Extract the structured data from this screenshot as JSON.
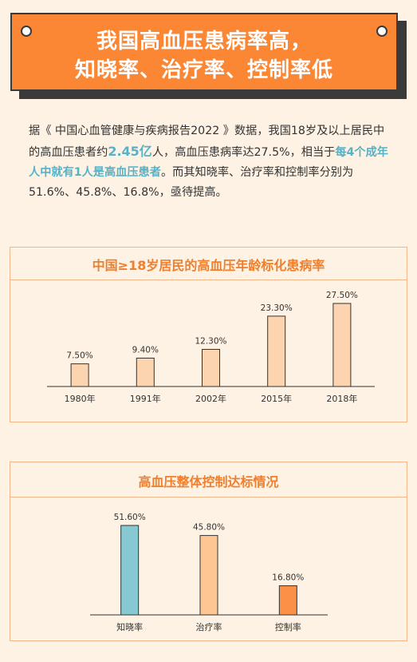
{
  "header": {
    "title_line1": "我国高血压患病率高，",
    "title_line2": "知晓率、治疗率、控制率低"
  },
  "intro": {
    "p1": "据《 中国心血管健康与疾病报告2022 》数据，我国18岁及以上居民中的高血压患者约",
    "patients": "2.45亿",
    "p2": "人，高血压患病率达27.5%，相当于",
    "emphasis": "每4个成年人中就有1人是高血压患者",
    "p3": "。而其知晓率、治疗率和控制率分别为51.6%、45.8%、16.8%，亟待提高。"
  },
  "colors": {
    "accent": "#fb8633",
    "title_orange": "#f07f2d",
    "highlight_blue": "#58b2c7",
    "bar_peach": "#fdd4b0",
    "bar_teal": "#86c9d3",
    "bar_light_orange": "#fdc693",
    "bar_orange": "#fb9046",
    "background": "#fdf2e3"
  },
  "chart_data": [
    {
      "type": "bar",
      "title": "中国≥18岁居民的高血压年龄标化患病率",
      "categories": [
        "1980年",
        "1991年",
        "2002年",
        "2015年",
        "2018年"
      ],
      "values": [
        7.5,
        9.4,
        12.3,
        23.3,
        27.5
      ],
      "value_labels": [
        "7.50%",
        "9.40%",
        "12.30%",
        "23.30%",
        "27.50%"
      ],
      "ylim": [
        0,
        27.5
      ],
      "grid": false,
      "bar_colors": [
        "#fdd4b0",
        "#fdd4b0",
        "#fdd4b0",
        "#fdd4b0",
        "#fdd4b0"
      ]
    },
    {
      "type": "bar",
      "title": "高血压整体控制达标情况",
      "categories": [
        "知晓率",
        "治疗率",
        "控制率"
      ],
      "values": [
        51.6,
        45.8,
        16.8
      ],
      "value_labels": [
        "51.60%",
        "45.80%",
        "16.80%"
      ],
      "ylim": [
        0,
        51.6
      ],
      "grid": false,
      "bar_colors": [
        "#86c9d3",
        "#fdc693",
        "#fb9046"
      ]
    }
  ]
}
